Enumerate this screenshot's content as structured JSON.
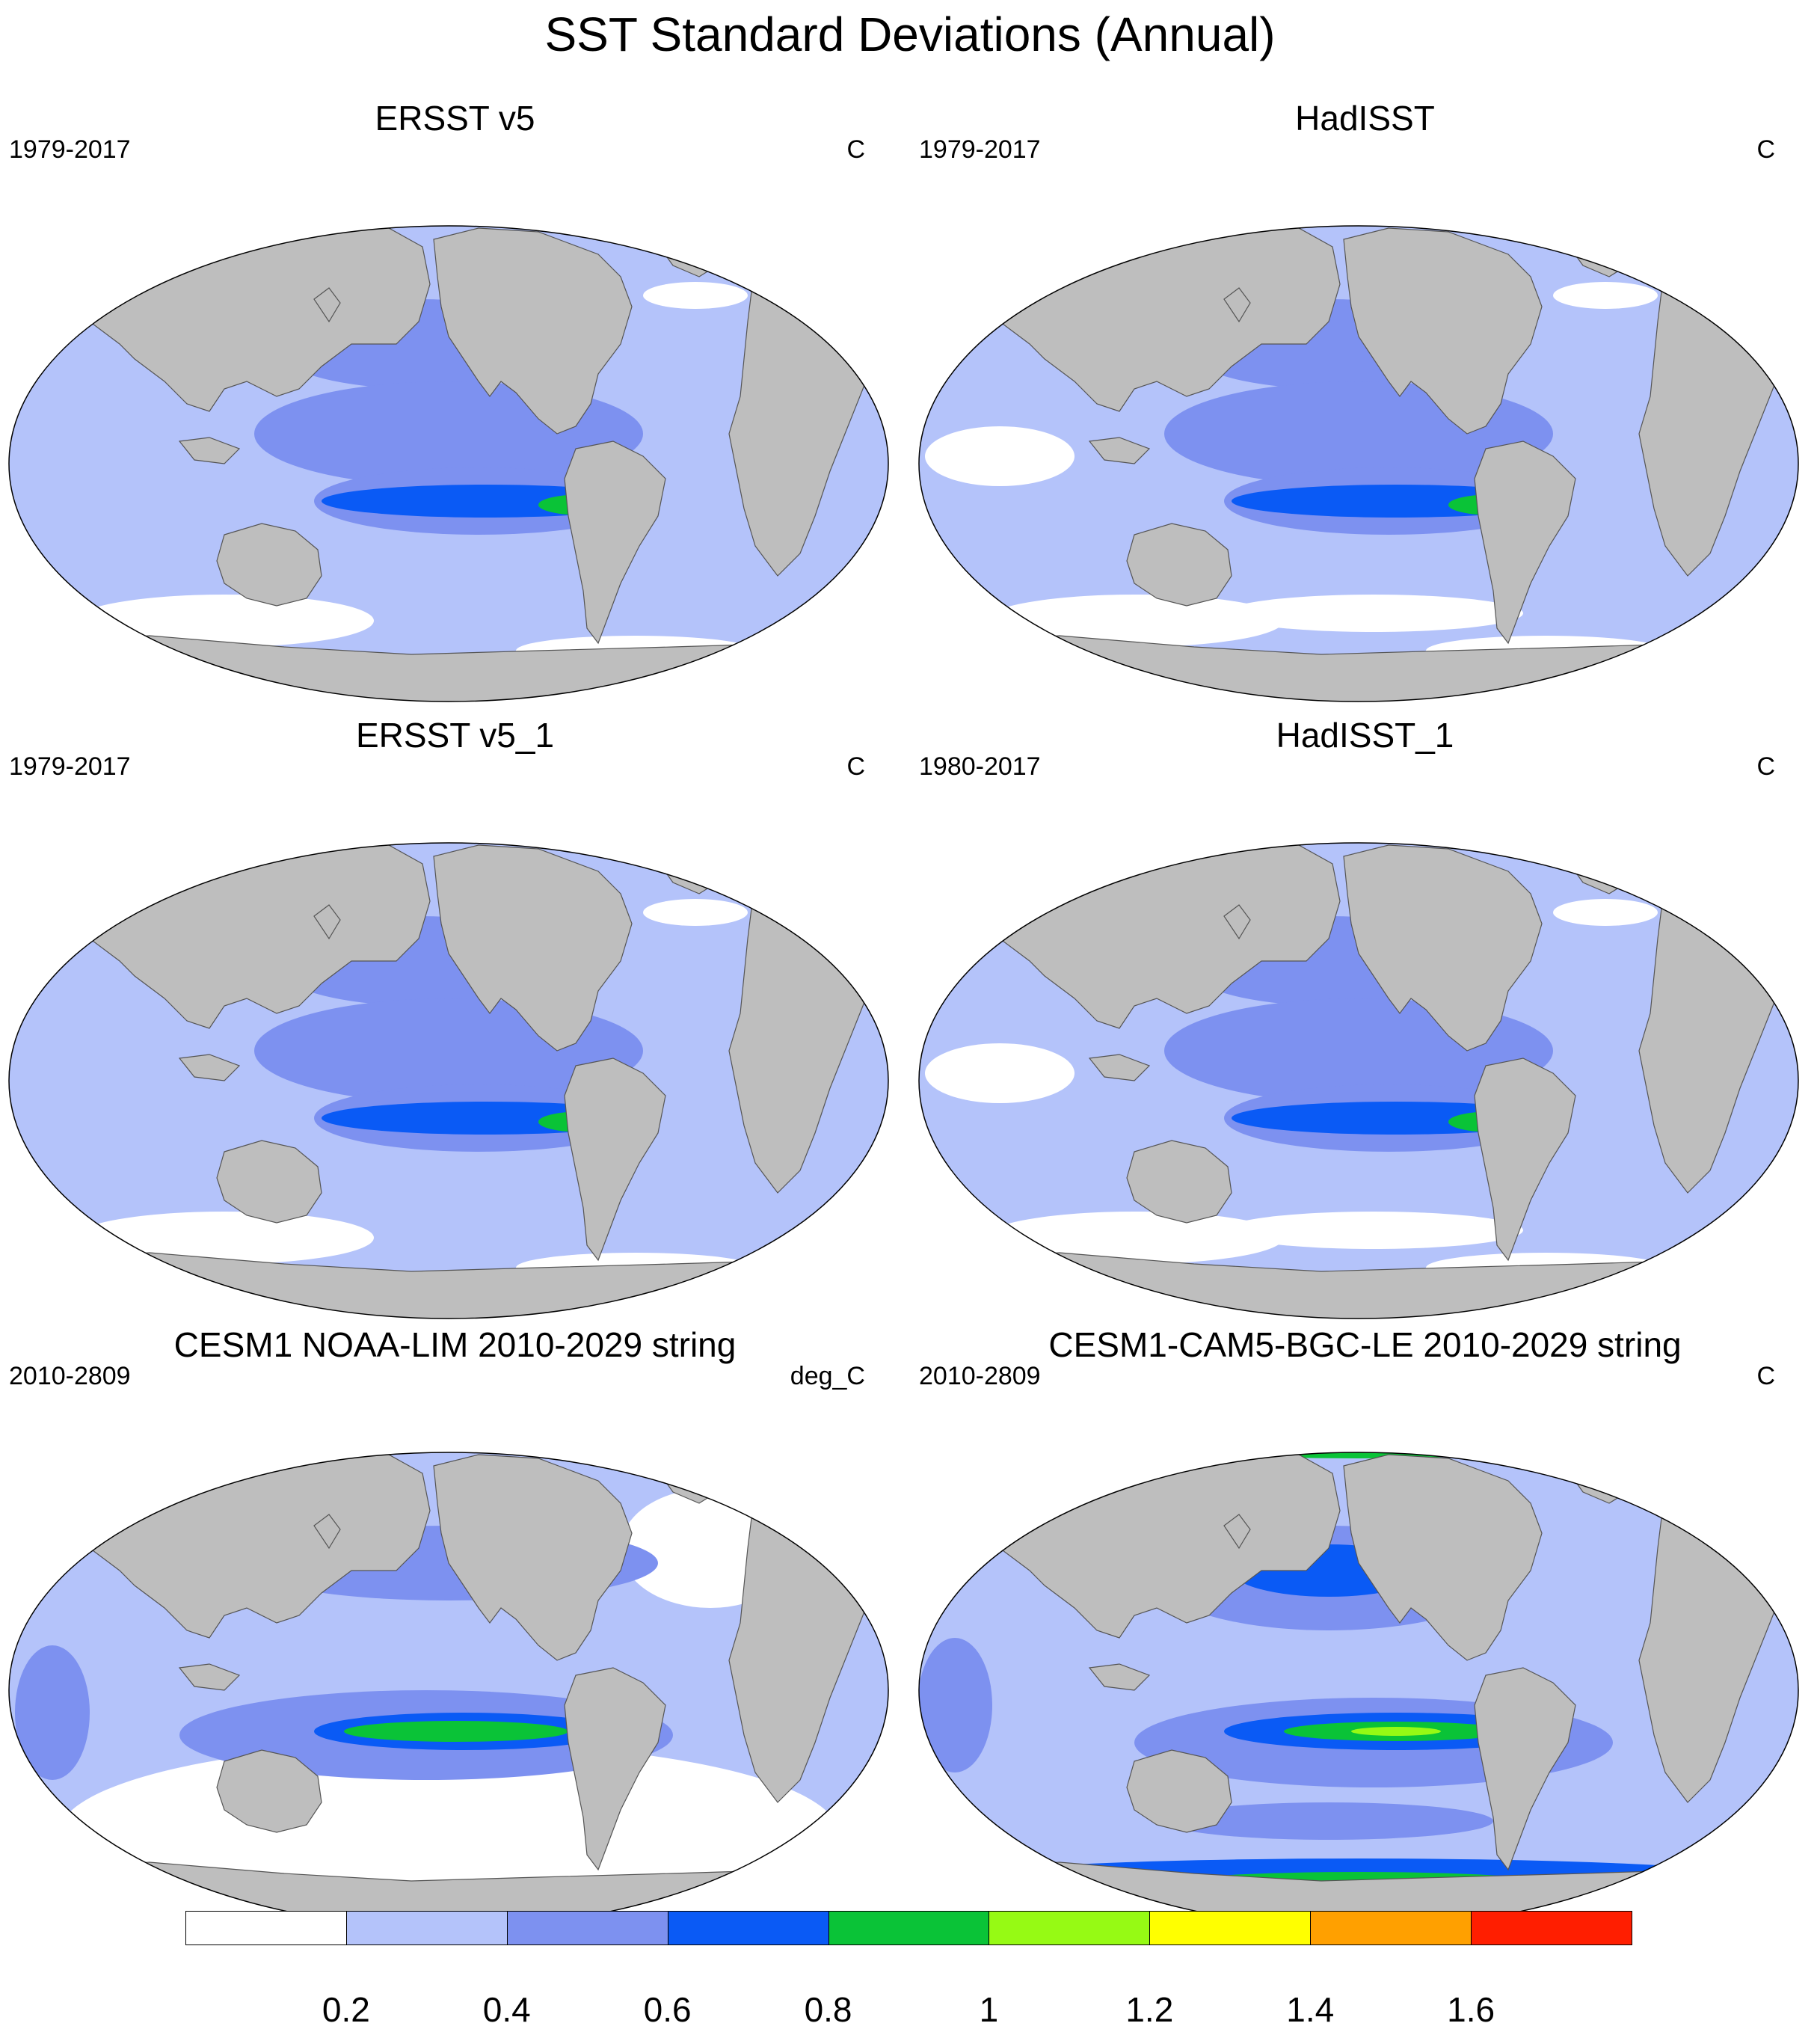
{
  "title": "SST Standard Deviations (Annual)",
  "panels": [
    {
      "title": "ERSST v5",
      "years": "1979-2017",
      "units": "C",
      "variant": "obs"
    },
    {
      "title": "HadISST",
      "years": "1979-2017",
      "units": "C",
      "variant": "had"
    },
    {
      "title": "ERSST v5_1",
      "years": "1979-2017",
      "units": "C",
      "variant": "obs"
    },
    {
      "title": "HadISST_1",
      "years": "1980-2017",
      "units": "C",
      "variant": "had"
    },
    {
      "title": "CESM1 NOAA-LIM 2010-2029 string",
      "years": "2010-2809",
      "units": "deg_C",
      "variant": "lim"
    },
    {
      "title": "CESM1-CAM5-BGC-LE 2010-2029 string",
      "years": "2010-2809",
      "units": "C",
      "variant": "le"
    }
  ],
  "colorbar": {
    "labels": [
      "0.2",
      "0.4",
      "0.6",
      "0.8",
      "1",
      "1.2",
      "1.4",
      "1.6"
    ],
    "colors": [
      "#ffffff",
      "#b4c3fa",
      "#7d91f0",
      "#0a5af5",
      "#0ac337",
      "#96fa14",
      "#ffff00",
      "#ffa000",
      "#ff1e00"
    ]
  },
  "colors": {
    "land": "#bebebe",
    "ocean_base": "#b4c3fa"
  }
}
